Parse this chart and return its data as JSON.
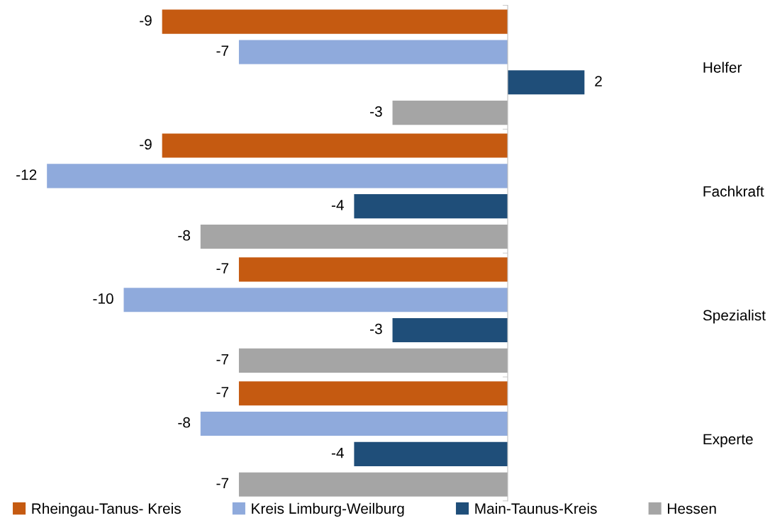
{
  "chart_data": {
    "type": "bar",
    "orientation": "horizontal",
    "categories": [
      "Helfer",
      "Fachkraft",
      "Spezialist",
      "Experte"
    ],
    "series": [
      {
        "name": "Rheingau-Tanus- Kreis",
        "color": "#c55a11",
        "values": [
          -9,
          -9,
          -7,
          -7
        ]
      },
      {
        "name": "Kreis Limburg-Weilburg",
        "color": "#8faadc",
        "values": [
          -7,
          -12,
          -10,
          -8
        ]
      },
      {
        "name": "Main-Taunus-Kreis",
        "color": "#1f4e79",
        "values": [
          2,
          -4,
          -3,
          -4
        ]
      },
      {
        "name": "Hessen",
        "color": "#a5a5a5",
        "values": [
          -3,
          -8,
          -7,
          -7
        ]
      }
    ],
    "data_labels": true,
    "legend": "bottom",
    "grid": false,
    "tick_labels": "y"
  }
}
